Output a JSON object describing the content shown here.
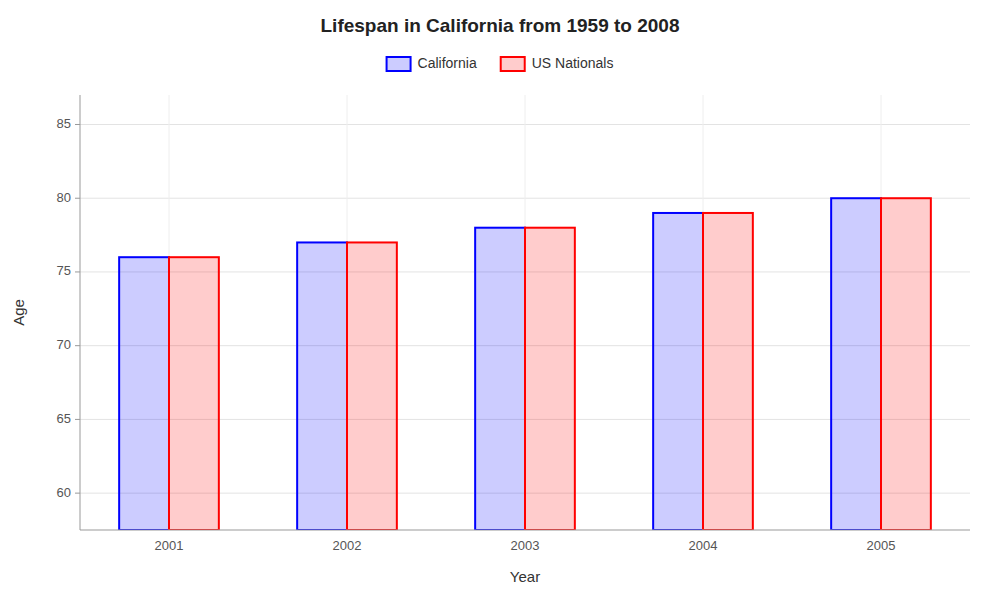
{
  "chart_data": {
    "type": "bar",
    "title": "Lifespan in California from 1959 to 2008",
    "x_label": "Year",
    "y_label": "Age",
    "categories": [
      "2001",
      "2002",
      "2003",
      "2004",
      "2005"
    ],
    "series": [
      {
        "name": "California",
        "color": "#0000ff",
        "values": [
          76,
          77,
          78,
          79,
          80
        ]
      },
      {
        "name": "US Nationals",
        "color": "#ff0000",
        "values": [
          76,
          77,
          78,
          79,
          80
        ]
      }
    ],
    "ylim": [
      57.5,
      87
    ],
    "yticks": [
      60,
      65,
      70,
      75,
      80,
      85
    ],
    "grid": true,
    "legend": "top"
  }
}
